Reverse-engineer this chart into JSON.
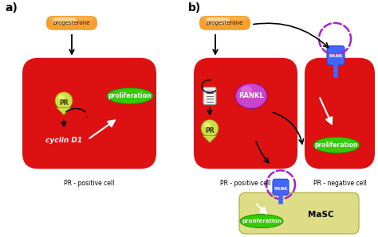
{
  "bg_color": "#ffffff",
  "label_a": "a)",
  "label_b": "b)",
  "cell_red": "#dd1111",
  "cell_yellow": "#dddd88",
  "pr_text": "PR",
  "prolif_text": "proliferation",
  "cyclin_text": "cyclin D1",
  "pos_cell_text": "PR - positive cell",
  "neg_cell_text": "PR - negative cell",
  "masc_text": "MaSC",
  "rank_text": "RANK",
  "rankl_text": "RANKL"
}
